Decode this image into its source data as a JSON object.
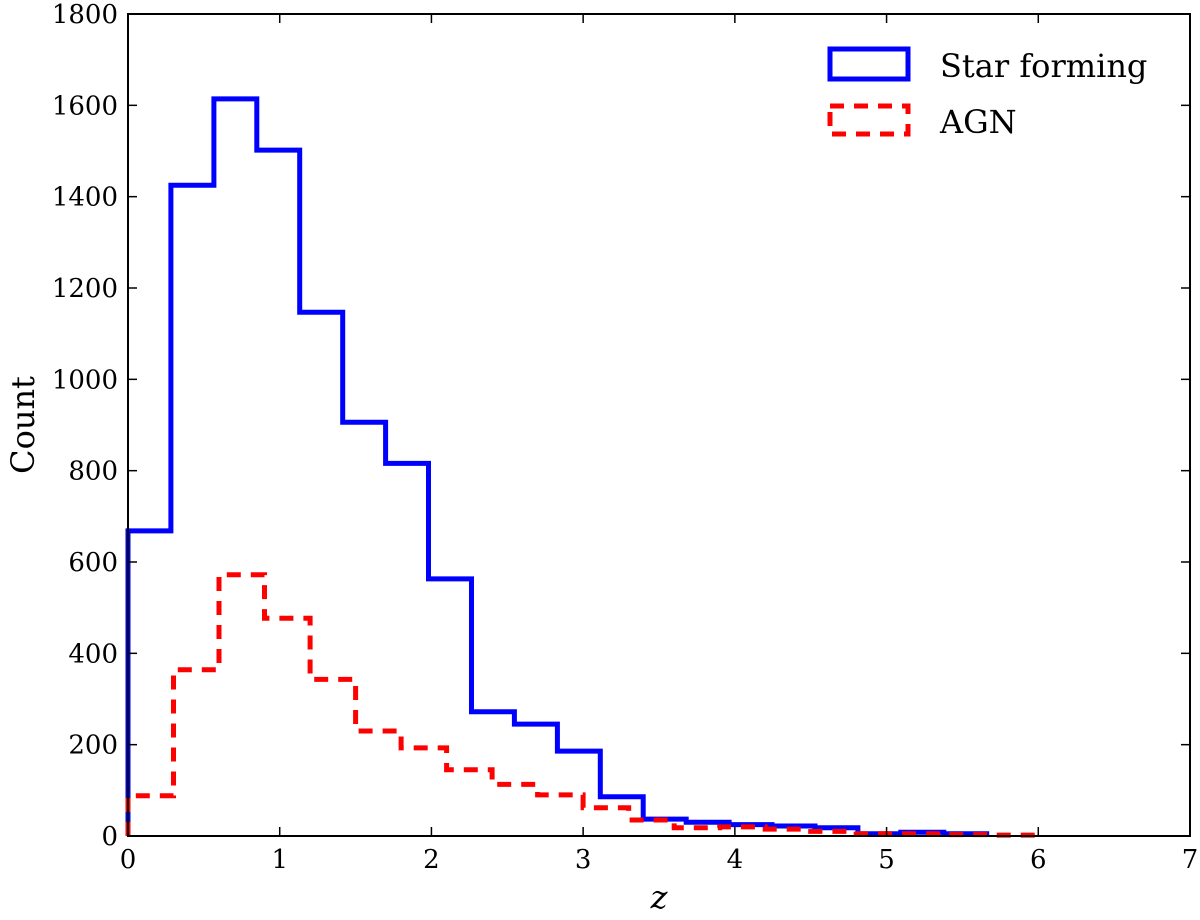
{
  "chart_data": {
    "type": "histogram",
    "xlabel": "z",
    "ylabel": "Count",
    "xlim": [
      0,
      7
    ],
    "ylim": [
      0,
      1800
    ],
    "xticks": [
      "0",
      "1",
      "2",
      "3",
      "4",
      "5",
      "6",
      "7"
    ],
    "yticks": [
      "0",
      "200",
      "400",
      "600",
      "800",
      "1000",
      "1200",
      "1400",
      "1600",
      "1800"
    ],
    "grid": false,
    "legend_position": "top-right",
    "series": [
      {
        "name": "Star forming",
        "color": "#0000ff",
        "linestyle": "solid",
        "bin_edges": [
          0,
          0.283,
          0.566,
          0.849,
          1.132,
          1.415,
          1.698,
          1.981,
          2.264,
          2.547,
          2.83,
          3.113,
          3.396,
          3.679,
          3.962,
          4.245,
          4.528,
          4.811,
          5.094,
          5.377,
          5.66
        ],
        "counts": [
          668,
          1425,
          1614,
          1502,
          1147,
          906,
          816,
          563,
          272,
          245,
          186,
          86,
          37,
          30,
          25,
          22,
          18,
          5,
          8,
          5
        ]
      },
      {
        "name": "AGN",
        "color": "#ff0000",
        "linestyle": "dashed",
        "bin_edges": [
          0,
          0.3,
          0.6,
          0.9,
          1.2,
          1.5,
          1.8,
          2.1,
          2.4,
          2.7,
          3.0,
          3.3,
          3.6,
          3.9,
          4.2,
          4.5,
          4.8,
          5.1,
          5.4,
          5.7,
          6.0
        ],
        "counts": [
          88,
          364,
          572,
          477,
          343,
          230,
          193,
          145,
          113,
          90,
          62,
          35,
          18,
          20,
          15,
          10,
          5,
          5,
          3,
          2
        ]
      }
    ]
  }
}
